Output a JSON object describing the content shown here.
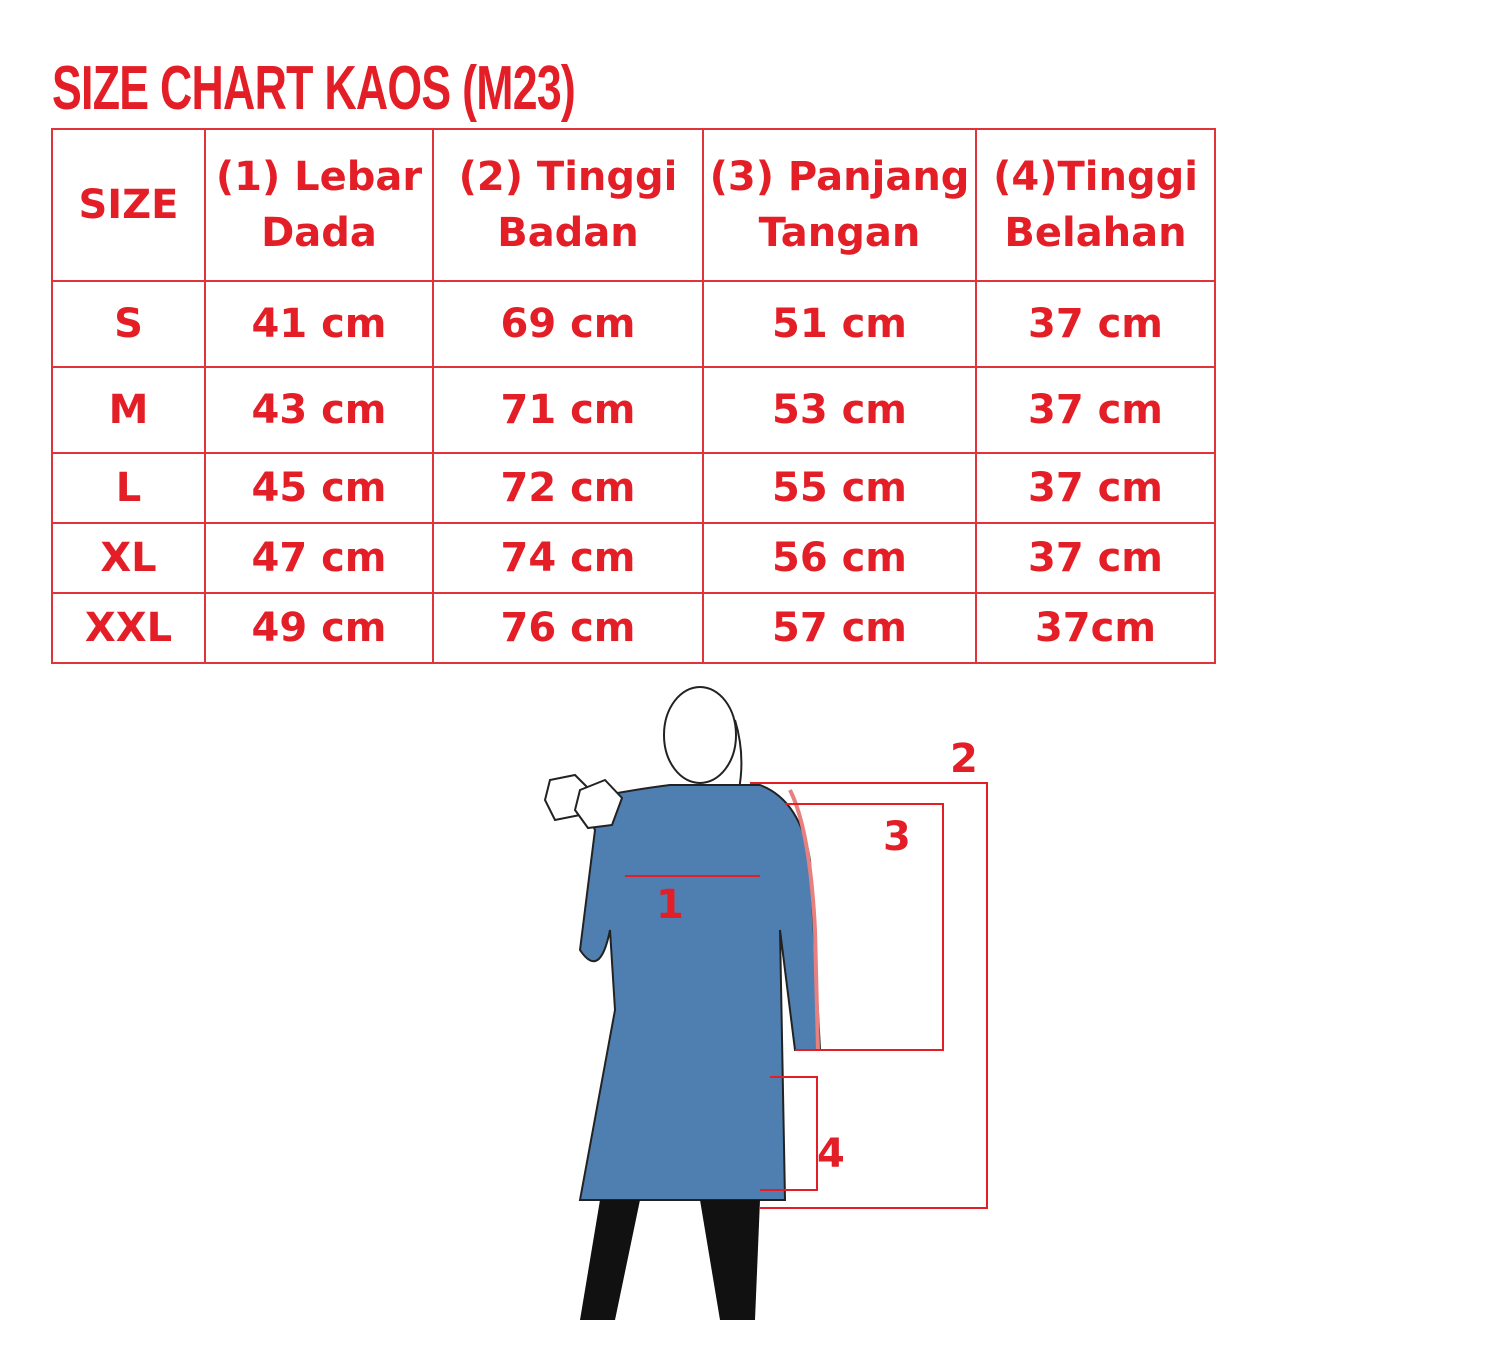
{
  "title": "SIZE CHART KAOS (M23)",
  "accent_color": "#e31e26",
  "headers": [
    [
      "SIZE"
    ],
    [
      "(1) Lebar",
      "Dada"
    ],
    [
      "(2) Tinggi",
      "Badan"
    ],
    [
      "(3) Panjang",
      "Tangan"
    ],
    [
      "(4)Tinggi",
      "Belahan"
    ]
  ],
  "rows": [
    [
      "S",
      "41 cm",
      "69 cm",
      "51 cm",
      "37 cm"
    ],
    [
      "M",
      "43 cm",
      "71 cm",
      "53 cm",
      "37 cm"
    ],
    [
      "L",
      "45 cm",
      "72 cm",
      "55 cm",
      "37 cm"
    ],
    [
      "XL",
      "47 cm",
      "74 cm",
      "56 cm",
      "37 cm"
    ],
    [
      "XXL",
      "49 cm",
      "76 cm",
      "57 cm",
      "37cm"
    ]
  ],
  "figure": {
    "labels": [
      "1",
      "2",
      "3",
      "4"
    ],
    "shirt_color": "#4f7fb0"
  }
}
